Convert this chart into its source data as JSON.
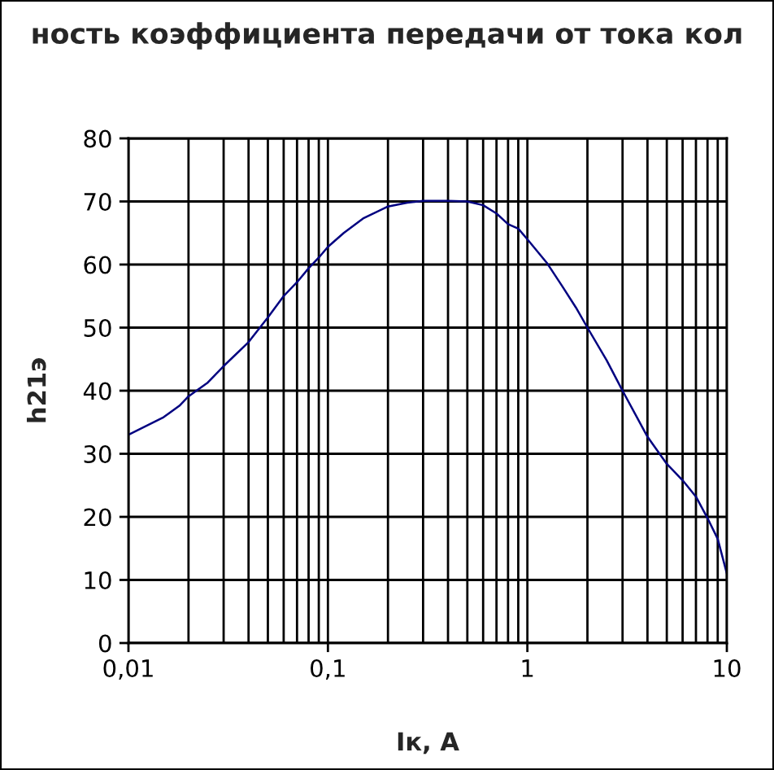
{
  "chart_data": {
    "type": "line",
    "title": "ность коэффициента передачи от тока кол",
    "xlabel": "Iк, А",
    "ylabel": "h21э",
    "log": "x",
    "grid": true,
    "line_style": "solid",
    "xlim": [
      0.01,
      10
    ],
    "xticks": [
      {
        "value": 0.01,
        "label": "0,01"
      },
      {
        "value": 0.02,
        "label": null
      },
      {
        "value": 0.03,
        "label": null
      },
      {
        "value": 0.04,
        "label": null
      },
      {
        "value": 0.05,
        "label": null
      },
      {
        "value": 0.06,
        "label": null
      },
      {
        "value": 0.07,
        "label": null
      },
      {
        "value": 0.08,
        "label": null
      },
      {
        "value": 0.09,
        "label": null
      },
      {
        "value": 0.1,
        "label": "0,1"
      },
      {
        "value": 0.2,
        "label": null
      },
      {
        "value": 0.3,
        "label": null
      },
      {
        "value": 0.4,
        "label": null
      },
      {
        "value": 0.5,
        "label": null
      },
      {
        "value": 0.6,
        "label": null
      },
      {
        "value": 0.7,
        "label": null
      },
      {
        "value": 0.8,
        "label": null
      },
      {
        "value": 0.9,
        "label": null
      },
      1,
      {
        "value": 2,
        "label": null
      },
      {
        "value": 3,
        "label": null
      },
      {
        "value": 4,
        "label": null
      },
      {
        "value": 5,
        "label": null
      },
      {
        "value": 6,
        "label": null
      },
      {
        "value": 7,
        "label": null
      },
      {
        "value": 8,
        "label": null
      },
      {
        "value": 9,
        "label": null
      },
      10
    ],
    "ylim": [
      0,
      80
    ],
    "yticks": [
      0,
      10,
      20,
      30,
      40,
      50,
      60,
      70,
      80
    ],
    "series": [
      {
        "color": "#000080",
        "x": [
          0.01,
          0.015,
          0.018,
          0.02,
          0.025,
          0.03,
          0.04,
          0.05,
          0.06,
          0.07,
          0.08,
          0.09,
          0.1,
          0.12,
          0.15,
          0.2,
          0.25,
          0.3,
          0.4,
          0.5,
          0.6,
          0.7,
          0.8,
          0.9,
          1,
          1.25,
          1.5,
          1.75,
          2,
          2.5,
          3,
          4,
          5,
          6,
          7,
          8,
          9,
          10
        ],
        "values": [
          33,
          35.8,
          37.6,
          39.1,
          41.3,
          43.9,
          47.7,
          51.6,
          55,
          57.2,
          59.4,
          61.1,
          62.8,
          65,
          67.3,
          69.2,
          69.8,
          70.1,
          70.1,
          70,
          69.4,
          68.1,
          66.4,
          65.7,
          64,
          60.3,
          56.5,
          53.2,
          50,
          44.8,
          40,
          32.7,
          28.4,
          25.8,
          23.2,
          19.8,
          16.5,
          11
        ]
      }
    ]
  }
}
